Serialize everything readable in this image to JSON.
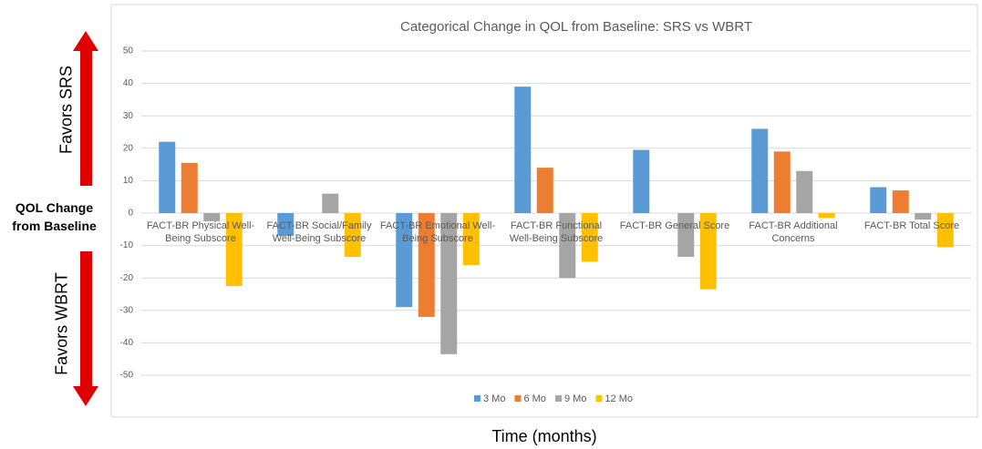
{
  "chart_data": {
    "type": "bar",
    "title": "Categorical Change in QOL from Baseline: SRS vs WBRT",
    "x_label": "Time (months)",
    "y_label": "QOL Change from Baseline",
    "annotations": [
      "Favors SRS",
      "Favors WBRT"
    ],
    "categories": [
      "FACT-BR Physical Well-Being Subscore",
      "FACT-BR Social/Family Well-Being Subscore",
      "FACT-BR Emotional Well-Being Subscore",
      "FACT-BR Functional Well-Being Subscore",
      "FACT-BR General Score",
      "FACT-BR Additional Concerns",
      "FACT-BR Total Score"
    ],
    "series": [
      {
        "name": "3 Mo",
        "color": "#5b9bd5",
        "values": [
          22,
          -7,
          -29,
          39,
          19.5,
          26,
          8
        ]
      },
      {
        "name": "6 Mo",
        "color": "#ed7d31",
        "values": [
          15.5,
          0,
          -32,
          14,
          0,
          19,
          7
        ]
      },
      {
        "name": "9 Mo",
        "color": "#a5a5a5",
        "values": [
          -2.5,
          6,
          -43.5,
          -20,
          -13.5,
          13,
          -2
        ]
      },
      {
        "name": "12 Mo",
        "color": "#ffc000",
        "values": [
          -22.5,
          -13.5,
          -16,
          -15,
          -23.5,
          -1.5,
          -10.5
        ]
      }
    ],
    "ylim": [
      -60,
      60
    ],
    "yticks": [
      -50,
      -40,
      -30,
      -20,
      -10,
      0,
      10,
      20,
      30,
      40,
      50
    ],
    "grid": true,
    "legend": "bottom"
  }
}
